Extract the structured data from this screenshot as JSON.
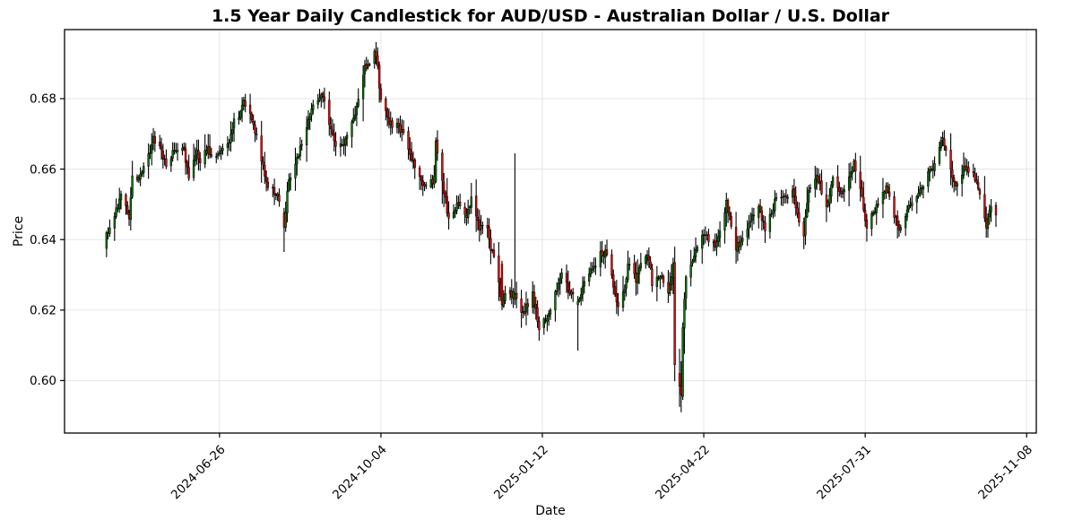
{
  "figure": {
    "background": "#ffffff"
  },
  "chart_data": {
    "type": "candlestick",
    "title": "1.5 Year Daily Candlestick for AUD/USD - Australian Dollar / U.S. Dollar",
    "xlabel": "Date",
    "ylabel": "Price",
    "x_ticks": [
      "2024-06-26",
      "2024-10-04",
      "2025-01-12",
      "2025-04-22",
      "2025-07-31",
      "2025-11-08"
    ],
    "y_ticks": [
      0.6,
      0.62,
      0.64,
      0.66,
      0.68
    ],
    "xlim": [
      "2024-03-22",
      "2025-11-14"
    ],
    "ylim": [
      0.5851,
      0.6996
    ],
    "grid": true,
    "x_tick_rotation_deg": 45,
    "style": {
      "up_color": "#008000",
      "down_color": "#ff0000",
      "wick_color": "#000000",
      "grid_color": "#e3e3e3",
      "axis_color": "#000000",
      "text_color": "#000000",
      "plot_background": "#ffffff"
    },
    "series": {
      "name": "AUD/USD",
      "interval": "daily",
      "date_range": [
        "2024-04-17",
        "2025-10-20"
      ],
      "price_range_observed": [
        0.591,
        0.6942
      ],
      "anchors": [
        [
          "2024-04-17",
          0.6395
        ],
        [
          "2024-04-18",
          0.642
        ],
        [
          "2024-04-23",
          0.648
        ],
        [
          "2024-04-26",
          0.6525
        ],
        [
          "2024-05-01",
          0.6465
        ],
        [
          "2024-05-03",
          0.657
        ],
        [
          "2024-05-08",
          0.658
        ],
        [
          "2024-05-10",
          0.66
        ],
        [
          "2024-05-14",
          0.6655
        ],
        [
          "2024-05-16",
          0.669
        ],
        [
          "2024-05-20",
          0.667
        ],
        [
          "2024-05-24",
          0.661
        ],
        [
          "2024-05-28",
          0.665
        ],
        [
          "2024-05-31",
          0.6655
        ],
        [
          "2024-06-04",
          0.665
        ],
        [
          "2024-06-07",
          0.6585
        ],
        [
          "2024-06-12",
          0.666
        ],
        [
          "2024-06-14",
          0.6615
        ],
        [
          "2024-06-19",
          0.6665
        ],
        [
          "2024-06-21",
          0.664
        ],
        [
          "2024-06-26",
          0.6645
        ],
        [
          "2024-07-01",
          0.666
        ],
        [
          "2024-07-05",
          0.6745
        ],
        [
          "2024-07-08",
          0.674
        ],
        [
          "2024-07-11",
          0.6785
        ],
        [
          "2024-07-15",
          0.676
        ],
        [
          "2024-07-19",
          0.669
        ],
        [
          "2024-07-24",
          0.658
        ],
        [
          "2024-07-26",
          0.6545
        ],
        [
          "2024-07-31",
          0.6535
        ],
        [
          "2024-08-02",
          0.651
        ],
        [
          "2024-08-05",
          0.6435
        ],
        [
          "2024-08-08",
          0.6575
        ],
        [
          "2024-08-13",
          0.6635
        ],
        [
          "2024-08-16",
          0.667
        ],
        [
          "2024-08-20",
          0.6745
        ],
        [
          "2024-08-23",
          0.679
        ],
        [
          "2024-08-29",
          0.681
        ],
        [
          "2024-09-03",
          0.671
        ],
        [
          "2024-09-06",
          0.667
        ],
        [
          "2024-09-11",
          0.6655
        ],
        [
          "2024-09-13",
          0.6705
        ],
        [
          "2024-09-18",
          0.6765
        ],
        [
          "2024-09-24",
          0.689
        ],
        [
          "2024-09-27",
          0.69
        ],
        [
          "2024-09-30",
          0.6935
        ],
        [
          "2024-10-02",
          0.6885
        ],
        [
          "2024-10-04",
          0.6795
        ],
        [
          "2024-10-09",
          0.673
        ],
        [
          "2024-10-14",
          0.6725
        ],
        [
          "2024-10-18",
          0.6705
        ],
        [
          "2024-10-23",
          0.6635
        ],
        [
          "2024-10-29",
          0.656
        ],
        [
          "2024-11-01",
          0.656
        ],
        [
          "2024-11-06",
          0.657
        ],
        [
          "2024-11-07",
          0.668
        ],
        [
          "2024-11-12",
          0.6535
        ],
        [
          "2024-11-15",
          0.646
        ],
        [
          "2024-11-21",
          0.651
        ],
        [
          "2024-11-26",
          0.6475
        ],
        [
          "2024-11-29",
          0.6515
        ],
        [
          "2024-12-04",
          0.643
        ],
        [
          "2024-12-09",
          0.644
        ],
        [
          "2024-12-11",
          0.637
        ],
        [
          "2024-12-13",
          0.636
        ],
        [
          "2024-12-18",
          0.6215
        ],
        [
          "2024-12-20",
          0.6245
        ],
        [
          "2024-12-26",
          0.6245
        ],
        [
          "2024-12-31",
          0.619
        ],
        [
          "2025-01-06",
          0.6245
        ],
        [
          "2025-01-10",
          0.6145
        ],
        [
          "2025-01-13",
          0.6175
        ],
        [
          "2025-01-17",
          0.62
        ],
        [
          "2025-01-24",
          0.631
        ],
        [
          "2025-01-28",
          0.6255
        ],
        [
          "2025-02-03",
          0.6225
        ],
        [
          "2025-02-07",
          0.628
        ],
        [
          "2025-02-13",
          0.632
        ],
        [
          "2025-02-17",
          0.6355
        ],
        [
          "2025-02-21",
          0.636
        ],
        [
          "2025-02-28",
          0.621
        ],
        [
          "2025-03-04",
          0.627
        ],
        [
          "2025-03-06",
          0.633
        ],
        [
          "2025-03-11",
          0.629
        ],
        [
          "2025-03-18",
          0.6365
        ],
        [
          "2025-03-21",
          0.628
        ],
        [
          "2025-03-26",
          0.6305
        ],
        [
          "2025-03-31",
          0.625
        ],
        [
          "2025-04-02",
          0.63
        ],
        [
          "2025-04-03",
          0.633
        ],
        [
          "2025-04-04",
          0.6045
        ],
        [
          "2025-04-07",
          0.5985
        ],
        [
          "2025-04-08",
          0.596
        ],
        [
          "2025-04-09",
          0.615
        ],
        [
          "2025-04-11",
          0.629
        ],
        [
          "2025-04-15",
          0.6345
        ],
        [
          "2025-04-22",
          0.642
        ],
        [
          "2025-04-29",
          0.6385
        ],
        [
          "2025-05-06",
          0.65
        ],
        [
          "2025-05-12",
          0.6375
        ],
        [
          "2025-05-16",
          0.6405
        ],
        [
          "2025-05-21",
          0.645
        ],
        [
          "2025-05-26",
          0.65
        ],
        [
          "2025-05-30",
          0.643
        ],
        [
          "2025-06-05",
          0.6505
        ],
        [
          "2025-06-11",
          0.652
        ],
        [
          "2025-06-16",
          0.653
        ],
        [
          "2025-06-23",
          0.641
        ],
        [
          "2025-06-26",
          0.655
        ],
        [
          "2025-07-01",
          0.6585
        ],
        [
          "2025-07-07",
          0.6495
        ],
        [
          "2025-07-11",
          0.658
        ],
        [
          "2025-07-16",
          0.6525
        ],
        [
          "2025-07-24",
          0.6615
        ],
        [
          "2025-07-29",
          0.652
        ],
        [
          "2025-08-01",
          0.6425
        ],
        [
          "2025-08-07",
          0.65
        ],
        [
          "2025-08-13",
          0.6555
        ],
        [
          "2025-08-21",
          0.6425
        ],
        [
          "2025-08-28",
          0.65
        ],
        [
          "2025-09-03",
          0.6545
        ],
        [
          "2025-09-11",
          0.661
        ],
        [
          "2025-09-17",
          0.6685
        ],
        [
          "2025-09-22",
          0.66
        ],
        [
          "2025-09-25",
          0.656
        ],
        [
          "2025-10-01",
          0.661
        ],
        [
          "2025-10-07",
          0.658
        ],
        [
          "2025-10-14",
          0.644
        ],
        [
          "2025-10-17",
          0.649
        ],
        [
          "2025-10-20",
          0.647
        ]
      ],
      "overrides": {
        "2024-04-17": [
          0.6375,
          0.6425,
          0.635,
          0.642
        ],
        "2024-08-05": [
          0.6475,
          0.649,
          0.6365,
          0.6435
        ],
        "2024-09-30": [
          0.69,
          0.6942,
          0.6885,
          0.6935
        ],
        "2024-11-07": [
          0.6565,
          0.669,
          0.656,
          0.668
        ],
        "2024-12-18": [
          0.633,
          0.634,
          0.62,
          0.6215
        ],
        "2024-12-26": [
          0.623,
          0.6645,
          0.6215,
          0.6245
        ],
        "2025-01-13": [
          0.615,
          0.618,
          0.613,
          0.6175
        ],
        "2025-02-03": [
          0.6215,
          0.624,
          0.6085,
          0.6225
        ],
        "2025-04-04": [
          0.6335,
          0.638,
          0.5998,
          0.6045
        ],
        "2025-04-07": [
          0.602,
          0.609,
          0.5925,
          0.5985
        ],
        "2025-04-08": [
          0.5985,
          0.6055,
          0.591,
          0.596
        ],
        "2025-04-09": [
          0.5955,
          0.6165,
          0.5945,
          0.615
        ],
        "2025-06-23": [
          0.645,
          0.6462,
          0.6373,
          0.641
        ]
      }
    }
  }
}
